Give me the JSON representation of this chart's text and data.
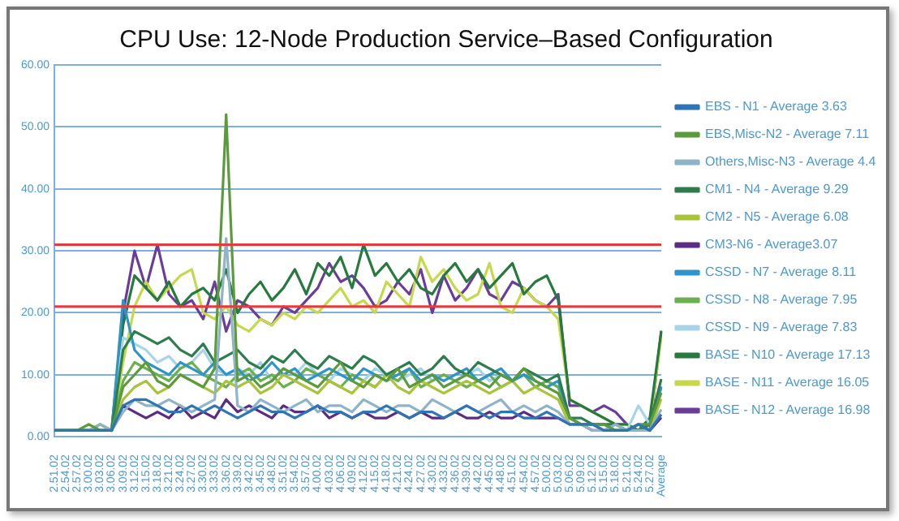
{
  "chart_data": {
    "type": "line",
    "title": "CPU Use: 12-Node Production Service–Based Configuration",
    "categories": [
      "2.51.02",
      "2.54.02",
      "2.57.02",
      "3.00.02",
      "3.03.02",
      "3.06.02",
      "3.09.02",
      "3.12.02",
      "3.15.02",
      "3.18.02",
      "3.21.02",
      "3.24.02",
      "3.27.02",
      "3.30.02",
      "3.33.02",
      "3.36.02",
      "3.39.02",
      "3.42.02",
      "3.45.02",
      "3.48.02",
      "3.51.02",
      "3.54.02",
      "3.57.02",
      "4.00.02",
      "4.03.02",
      "4.06.02",
      "4.09.02",
      "4.12.02",
      "4.15.02",
      "4.18.02",
      "4.21.02",
      "4.24.02",
      "4.27.02",
      "4.30.02",
      "4.33.02",
      "4.36.02",
      "4.39.02",
      "4.42.02",
      "4.45.02",
      "4.48.02",
      "4.51.02",
      "4.54.02",
      "4.57.02",
      "5.00.02",
      "5.03.02",
      "5.06.02",
      "5.09.02",
      "5.12.02",
      "5.15.02",
      "5.18.02",
      "5.21.02",
      "5.24.02",
      "5.27.02",
      "Average"
    ],
    "series": [
      {
        "name": "EBS - N1 - Average 3.63",
        "color": "#2e75b6",
        "values": [
          1,
          1,
          1,
          1,
          1,
          1,
          5,
          6,
          6,
          5,
          4,
          4,
          5,
          4,
          5,
          4,
          3,
          4,
          5,
          4,
          4,
          3,
          4,
          5,
          4,
          4,
          3,
          4,
          4,
          5,
          4,
          3,
          4,
          4,
          3,
          4,
          5,
          4,
          3,
          4,
          4,
          3,
          3,
          4,
          3,
          2,
          2,
          2,
          1,
          1,
          1,
          2,
          1,
          3.6
        ]
      },
      {
        "name": "EBS,Misc-N2 - Average 7.11",
        "color": "#5b9b3c",
        "values": [
          1,
          1,
          1,
          2,
          1,
          1,
          8,
          10,
          12,
          9,
          8,
          10,
          9,
          8,
          11,
          52,
          9,
          10,
          8,
          9,
          11,
          10,
          9,
          8,
          10,
          12,
          9,
          8,
          10,
          9,
          11,
          8,
          9,
          10,
          8,
          9,
          10,
          9,
          8,
          10,
          9,
          11,
          9,
          8,
          7,
          3,
          2,
          2,
          2,
          1,
          1,
          2,
          2,
          7.1
        ]
      },
      {
        "name": "Others,Misc-N3 - Average 4.4",
        "color": "#8fb4c8",
        "values": [
          1,
          1,
          1,
          1,
          2,
          1,
          4,
          6,
          5,
          5,
          6,
          5,
          4,
          5,
          6,
          32,
          5,
          4,
          6,
          5,
          4,
          5,
          6,
          4,
          5,
          5,
          4,
          6,
          5,
          4,
          5,
          5,
          4,
          6,
          5,
          4,
          5,
          4,
          5,
          6,
          4,
          5,
          4,
          5,
          4,
          2,
          2,
          1,
          1,
          2,
          1,
          1,
          1,
          4.4
        ]
      },
      {
        "name": "CM1 - N4 - Average 9.29",
        "color": "#2e7d4f",
        "values": [
          1,
          1,
          1,
          1,
          1,
          1,
          14,
          17,
          16,
          15,
          16,
          14,
          13,
          15,
          12,
          13,
          14,
          12,
          11,
          13,
          12,
          14,
          12,
          11,
          13,
          12,
          11,
          13,
          12,
          10,
          11,
          12,
          10,
          11,
          13,
          11,
          10,
          12,
          11,
          10,
          9,
          11,
          10,
          9,
          10,
          3,
          3,
          2,
          2,
          2,
          1,
          1,
          2,
          9.3
        ]
      },
      {
        "name": "CM2 - N5 - Average 6.08",
        "color": "#a9c43a",
        "values": [
          1,
          1,
          1,
          1,
          2,
          1,
          6,
          8,
          9,
          7,
          8,
          10,
          9,
          8,
          7,
          9,
          8,
          9,
          7,
          8,
          10,
          9,
          8,
          7,
          9,
          8,
          7,
          9,
          8,
          10,
          8,
          7,
          9,
          8,
          7,
          8,
          9,
          8,
          7,
          8,
          9,
          7,
          8,
          7,
          6,
          2,
          2,
          2,
          1,
          1,
          1,
          2,
          1,
          6.1
        ]
      },
      {
        "name": "CM3-N6 - Average3.07",
        "color": "#5b2c83",
        "values": [
          null,
          null,
          null,
          null,
          null,
          1,
          5,
          4,
          3,
          4,
          3,
          5,
          3,
          4,
          3,
          6,
          4,
          5,
          4,
          3,
          5,
          4,
          4,
          5,
          3,
          4,
          3,
          4,
          3,
          3,
          4,
          3,
          4,
          3,
          3,
          4,
          3,
          3,
          4,
          3,
          3,
          4,
          3,
          3,
          3,
          2,
          2,
          1,
          1,
          1,
          1,
          2,
          1,
          3.1
        ]
      },
      {
        "name": "CSSD - N7 - Average 8.11",
        "color": "#2f94c9",
        "values": [
          1,
          1,
          1,
          1,
          1,
          1,
          22,
          14,
          12,
          11,
          10,
          12,
          11,
          10,
          12,
          10,
          11,
          9,
          10,
          12,
          10,
          11,
          9,
          10,
          11,
          10,
          9,
          11,
          10,
          9,
          10,
          11,
          9,
          10,
          9,
          10,
          11,
          9,
          10,
          11,
          9,
          10,
          9,
          8,
          9,
          3,
          2,
          2,
          2,
          1,
          1,
          1,
          2,
          8.1
        ]
      },
      {
        "name": "CSSD - N8 - Average 7.95",
        "color": "#6ab04c",
        "values": [
          1,
          1,
          1,
          1,
          2,
          1,
          9,
          12,
          11,
          10,
          9,
          11,
          12,
          10,
          9,
          8,
          10,
          11,
          9,
          10,
          8,
          9,
          11,
          10,
          9,
          8,
          10,
          9,
          8,
          10,
          9,
          11,
          8,
          9,
          10,
          9,
          8,
          9,
          10,
          8,
          9,
          10,
          8,
          9,
          8,
          3,
          2,
          2,
          1,
          2,
          1,
          1,
          2,
          8.0
        ]
      },
      {
        "name": "CSSD - N9 - Average 7.83",
        "color": "#a8d4ea",
        "values": [
          1,
          1,
          1,
          1,
          1,
          1,
          16,
          15,
          14,
          12,
          13,
          11,
          12,
          14,
          11,
          10,
          11,
          10,
          12,
          9,
          11,
          10,
          12,
          10,
          9,
          11,
          10,
          9,
          11,
          10,
          9,
          10,
          11,
          9,
          10,
          9,
          10,
          11,
          9,
          10,
          9,
          10,
          8,
          9,
          8,
          3,
          2,
          2,
          2,
          1,
          1,
          5,
          2,
          7.8
        ]
      },
      {
        "name": "BASE - N10 - Average 17.13",
        "color": "#267a3e",
        "values": [
          1,
          1,
          1,
          1,
          1,
          1,
          18,
          26,
          24,
          22,
          25,
          21,
          23,
          24,
          22,
          27,
          20,
          23,
          25,
          22,
          24,
          27,
          23,
          28,
          26,
          29,
          24,
          31,
          26,
          28,
          25,
          27,
          24,
          23,
          26,
          28,
          25,
          27,
          24,
          26,
          28,
          23,
          25,
          26,
          22,
          6,
          5,
          4,
          3,
          2,
          2,
          1,
          3,
          17.1
        ]
      },
      {
        "name": "BASE - N11 - Average 16.05",
        "color": "#c6d94a",
        "values": [
          null,
          null,
          null,
          null,
          null,
          1,
          12,
          21,
          25,
          22,
          24,
          26,
          27,
          20,
          19,
          21,
          18,
          17,
          19,
          18,
          20,
          19,
          21,
          20,
          22,
          24,
          21,
          22,
          20,
          25,
          23,
          21,
          29,
          25,
          27,
          24,
          22,
          23,
          28,
          21,
          20,
          24,
          22,
          21,
          19,
          6,
          5,
          4,
          3,
          2,
          2,
          1,
          2,
          16.1
        ]
      },
      {
        "name": "BASE - N12 - Average 16.98",
        "color": "#6a3d9a",
        "values": [
          null,
          null,
          null,
          null,
          null,
          1,
          20,
          30,
          24,
          31,
          23,
          21,
          22,
          19,
          25,
          17,
          22,
          21,
          19,
          18,
          21,
          20,
          22,
          24,
          28,
          25,
          26,
          24,
          21,
          22,
          25,
          23,
          27,
          20,
          26,
          22,
          24,
          27,
          23,
          22,
          25,
          24,
          22,
          21,
          23,
          5,
          5,
          4,
          5,
          4,
          2,
          1,
          1,
          17.0
        ]
      }
    ],
    "ylim": [
      0,
      60
    ],
    "yticks": [
      {
        "value": 0,
        "label": "0.00"
      },
      {
        "value": 10,
        "label": "10.00"
      },
      {
        "value": 20,
        "label": "20.00"
      },
      {
        "value": 30,
        "label": "30.00"
      },
      {
        "value": 40,
        "label": "40.00"
      },
      {
        "value": 50,
        "label": "50.00"
      },
      {
        "value": 60,
        "label": "60.00"
      }
    ],
    "ref_lines": [
      {
        "axis": "y",
        "value": 31,
        "color": "#e8393c"
      },
      {
        "axis": "y",
        "value": 21,
        "color": "#e8393c"
      }
    ],
    "grid": "y",
    "legend": "right",
    "marker": "none"
  }
}
